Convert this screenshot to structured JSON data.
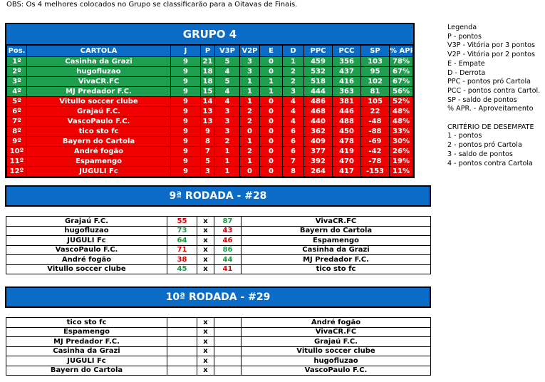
{
  "obs": "OBS: Os 4 melhores colocados no Grupo se classificarão para a Oitavas de Finais.",
  "group": {
    "title": "GRUPO 4",
    "headers": [
      "Pos.",
      "CARTOLA",
      "J",
      "P",
      "V3P",
      "V2P",
      "E",
      "D",
      "PPC",
      "PCC",
      "SP",
      "% APR."
    ],
    "colors": {
      "qualified": "#1e9e4f",
      "eliminated": "#f00000",
      "header": "#0a6cc6"
    },
    "rows": [
      [
        "1º",
        "Casinha da Grazi",
        "9",
        "21",
        "5",
        "3",
        "0",
        "1",
        "459",
        "356",
        "103",
        "78%"
      ],
      [
        "2º",
        "hugofluzao",
        "9",
        "18",
        "4",
        "3",
        "0",
        "2",
        "532",
        "437",
        "95",
        "67%"
      ],
      [
        "3º",
        "VivaCR.FC",
        "9",
        "18",
        "5",
        "1",
        "1",
        "2",
        "518",
        "416",
        "102",
        "67%"
      ],
      [
        "4º",
        "MJ Predador F.C.",
        "9",
        "15",
        "4",
        "1",
        "1",
        "3",
        "444",
        "363",
        "81",
        "56%"
      ],
      [
        "5º",
        "Vitullo soccer clube",
        "9",
        "14",
        "4",
        "1",
        "0",
        "4",
        "486",
        "381",
        "105",
        "52%"
      ],
      [
        "6º",
        "Grajaú F.C.",
        "9",
        "13",
        "3",
        "2",
        "0",
        "4",
        "468",
        "446",
        "22",
        "48%"
      ],
      [
        "7º",
        "VascoPaulo F.C.",
        "9",
        "13",
        "3",
        "2",
        "0",
        "4",
        "440",
        "488",
        "-48",
        "48%"
      ],
      [
        "8º",
        "tico sto fc",
        "9",
        "9",
        "3",
        "0",
        "0",
        "6",
        "362",
        "450",
        "-88",
        "33%"
      ],
      [
        "9º",
        "Bayern do Cartola",
        "9",
        "8",
        "2",
        "1",
        "0",
        "6",
        "409",
        "478",
        "-69",
        "30%"
      ],
      [
        "10º",
        "André fogão",
        "9",
        "7",
        "1",
        "2",
        "0",
        "6",
        "377",
        "419",
        "-42",
        "26%"
      ],
      [
        "11º",
        "Espamengo",
        "9",
        "5",
        "1",
        "1",
        "0",
        "7",
        "392",
        "470",
        "-78",
        "19%"
      ],
      [
        "12º",
        "JUGULI Fc",
        "9",
        "3",
        "1",
        "0",
        "0",
        "8",
        "264",
        "417",
        "-153",
        "11%"
      ]
    ]
  },
  "legend": [
    "Legenda",
    "P - pontos",
    "V3P - Vitória por 3 pontos",
    "V2P - Vitória por 2 pontos",
    "E - Empate",
    "D - Derrota",
    "PPC - pontos pró Cartola",
    "PCC - pontos contra Cartol.",
    "SP - saldo de pontos",
    "% APR. - Aproveitamento",
    "",
    "CRITÉRIO DE DESEMPATE",
    "1 - pontos",
    "2 - pontos pró Cartola",
    "3 - saldo de pontos",
    "4 - pontos contra Cartola"
  ],
  "rounds": [
    {
      "title": "9ª RODADA - #28",
      "matches": [
        [
          "Grajaú F.C.",
          "55",
          "x",
          "87",
          "VivaCR.FC"
        ],
        [
          "hugofluzao",
          "73",
          "x",
          "43",
          "Bayern do Cartola"
        ],
        [
          "JUGULI Fc",
          "64",
          "x",
          "46",
          "Espamengo"
        ],
        [
          "VascoPaulo F.C.",
          "71",
          "x",
          "86",
          "Casinha da Grazi"
        ],
        [
          "André fogão",
          "38",
          "x",
          "44",
          "MJ Predador F.C."
        ],
        [
          "Vitullo soccer clube",
          "45",
          "x",
          "41",
          "tico sto fc"
        ]
      ]
    },
    {
      "title": "10ª RODADA - #29",
      "matches": [
        [
          "tico sto fc",
          "",
          "x",
          "",
          "André fogão"
        ],
        [
          "Espamengo",
          "",
          "x",
          "",
          "VivaCR.FC"
        ],
        [
          "MJ Predador F.C.",
          "",
          "x",
          "",
          "Grajaú F.C."
        ],
        [
          "Casinha da Grazi",
          "",
          "x",
          "",
          "Vitullo soccer clube"
        ],
        [
          "JUGULI Fc",
          "",
          "x",
          "",
          "hugofluzao"
        ],
        [
          "Bayern do Cartola",
          "",
          "x",
          "",
          "VascoPaulo F.C."
        ]
      ]
    }
  ]
}
